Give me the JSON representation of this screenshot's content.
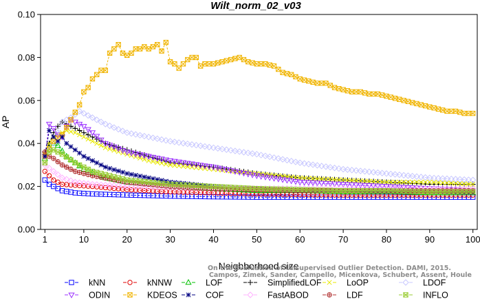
{
  "chart_data": {
    "type": "line",
    "title": "Wilt_norm_02_v03",
    "xlabel": "Neighborhood size",
    "ylabel": "AP",
    "xlim": [
      0,
      101
    ],
    "ylim": [
      0.0,
      0.1
    ],
    "xticks": [
      1,
      10,
      20,
      30,
      40,
      50,
      60,
      70,
      80,
      90,
      100
    ],
    "yticks": [
      0.0,
      0.02,
      0.04,
      0.06,
      0.08,
      0.1
    ],
    "xtick_labels": [
      "1",
      "10",
      "20",
      "30",
      "40",
      "50",
      "60",
      "70",
      "80",
      "90",
      "100"
    ],
    "ytick_labels": [
      "0.00",
      "0.02",
      "0.04",
      "0.06",
      "0.08",
      "0.10"
    ],
    "grid": false,
    "legend_position": "bottom",
    "watermark": [
      "Campos, Zimek, Sander, Campello, Micenkova, Schubert, Assent, Houle",
      "On the Evaluation of Unsupervised Outlier Detection. DAMI, 2015."
    ],
    "series": [
      {
        "name": "kNN",
        "color": "#0000ff",
        "marker": "square",
        "points": [
          [
            1,
            0.023
          ],
          [
            2,
            0.021
          ],
          [
            3,
            0.02
          ],
          [
            5,
            0.018
          ],
          [
            8,
            0.017
          ],
          [
            12,
            0.0165
          ],
          [
            20,
            0.016
          ],
          [
            30,
            0.0155
          ],
          [
            40,
            0.0152
          ],
          [
            50,
            0.015
          ],
          [
            60,
            0.015
          ],
          [
            70,
            0.015
          ],
          [
            80,
            0.015
          ],
          [
            90,
            0.015
          ],
          [
            100,
            0.015
          ]
        ]
      },
      {
        "name": "kNNW",
        "color": "#e00000",
        "marker": "circle",
        "points": [
          [
            1,
            0.027
          ],
          [
            2,
            0.025
          ],
          [
            3,
            0.023
          ],
          [
            5,
            0.021
          ],
          [
            8,
            0.0205
          ],
          [
            12,
            0.02
          ],
          [
            20,
            0.0185
          ],
          [
            30,
            0.0175
          ],
          [
            40,
            0.017
          ],
          [
            50,
            0.0165
          ],
          [
            60,
            0.0162
          ],
          [
            70,
            0.016
          ],
          [
            80,
            0.016
          ],
          [
            90,
            0.016
          ],
          [
            100,
            0.016
          ]
        ]
      },
      {
        "name": "LOF",
        "color": "#00c000",
        "marker": "triangle-up",
        "points": [
          [
            1,
            0.033
          ],
          [
            2,
            0.038
          ],
          [
            3,
            0.04
          ],
          [
            4,
            0.039
          ],
          [
            6,
            0.034
          ],
          [
            10,
            0.028
          ],
          [
            15,
            0.024
          ],
          [
            20,
            0.022
          ],
          [
            30,
            0.02
          ],
          [
            40,
            0.019
          ],
          [
            50,
            0.018
          ],
          [
            60,
            0.018
          ],
          [
            70,
            0.0175
          ],
          [
            80,
            0.0175
          ],
          [
            90,
            0.017
          ],
          [
            100,
            0.017
          ]
        ]
      },
      {
        "name": "SimplifiedLOF",
        "color": "#000000",
        "marker": "plus",
        "points": [
          [
            1,
            0.036
          ],
          [
            2,
            0.04
          ],
          [
            3,
            0.045
          ],
          [
            4,
            0.048
          ],
          [
            5,
            0.05
          ],
          [
            6,
            0.049
          ],
          [
            8,
            0.047
          ],
          [
            10,
            0.045
          ],
          [
            12,
            0.043
          ],
          [
            15,
            0.04
          ],
          [
            20,
            0.037
          ],
          [
            25,
            0.034
          ],
          [
            30,
            0.031
          ],
          [
            40,
            0.029
          ],
          [
            50,
            0.026
          ],
          [
            60,
            0.024
          ],
          [
            70,
            0.023
          ],
          [
            80,
            0.022
          ],
          [
            90,
            0.021
          ],
          [
            100,
            0.021
          ]
        ]
      },
      {
        "name": "LoOP",
        "color": "#e8e800",
        "marker": "cross",
        "points": [
          [
            1,
            0.035
          ],
          [
            2,
            0.04
          ],
          [
            3,
            0.043
          ],
          [
            4,
            0.044
          ],
          [
            6,
            0.046
          ],
          [
            8,
            0.045
          ],
          [
            10,
            0.043
          ],
          [
            12,
            0.041
          ],
          [
            15,
            0.038
          ],
          [
            20,
            0.035
          ],
          [
            25,
            0.032
          ],
          [
            30,
            0.03
          ],
          [
            40,
            0.028
          ],
          [
            50,
            0.026
          ],
          [
            60,
            0.024
          ],
          [
            70,
            0.023
          ],
          [
            80,
            0.022
          ],
          [
            90,
            0.022
          ],
          [
            100,
            0.021
          ]
        ]
      },
      {
        "name": "LDOF",
        "color": "#c8c8ff",
        "marker": "diamond",
        "points": [
          [
            1,
            0.034
          ],
          [
            3,
            0.04
          ],
          [
            5,
            0.05
          ],
          [
            7,
            0.052
          ],
          [
            9,
            0.055
          ],
          [
            10,
            0.054
          ],
          [
            12,
            0.052
          ],
          [
            15,
            0.049
          ],
          [
            20,
            0.045
          ],
          [
            25,
            0.043
          ],
          [
            30,
            0.041
          ],
          [
            40,
            0.038
          ],
          [
            50,
            0.035
          ],
          [
            60,
            0.031
          ],
          [
            70,
            0.028
          ],
          [
            80,
            0.026
          ],
          [
            90,
            0.024
          ],
          [
            100,
            0.023
          ]
        ]
      },
      {
        "name": "ODIN",
        "color": "#9b30ff",
        "marker": "triangle-down",
        "points": [
          [
            1,
            0.034
          ],
          [
            2,
            0.049
          ],
          [
            3,
            0.047
          ],
          [
            4,
            0.044
          ],
          [
            5,
            0.043
          ],
          [
            6,
            0.048
          ],
          [
            7,
            0.051
          ],
          [
            8,
            0.05
          ],
          [
            10,
            0.048
          ],
          [
            12,
            0.045
          ],
          [
            15,
            0.04
          ],
          [
            20,
            0.036
          ],
          [
            25,
            0.034
          ],
          [
            30,
            0.032
          ],
          [
            40,
            0.029
          ],
          [
            50,
            0.025
          ],
          [
            60,
            0.022
          ],
          [
            70,
            0.021
          ],
          [
            80,
            0.02
          ],
          [
            90,
            0.019
          ],
          [
            100,
            0.018
          ]
        ]
      },
      {
        "name": "KDEOS",
        "color": "#f0b400",
        "marker": "square-x",
        "points": [
          [
            1,
            0.034
          ],
          [
            3,
            0.041
          ],
          [
            5,
            0.044
          ],
          [
            7,
            0.051
          ],
          [
            9,
            0.058
          ],
          [
            10,
            0.064
          ],
          [
            11,
            0.066
          ],
          [
            12,
            0.07
          ],
          [
            13,
            0.072
          ],
          [
            14,
            0.074
          ],
          [
            15,
            0.074
          ],
          [
            16,
            0.082
          ],
          [
            17,
            0.084
          ],
          [
            18,
            0.086
          ],
          [
            19,
            0.082
          ],
          [
            20,
            0.081
          ],
          [
            21,
            0.082
          ],
          [
            22,
            0.084
          ],
          [
            23,
            0.084
          ],
          [
            24,
            0.085
          ],
          [
            25,
            0.084
          ],
          [
            26,
            0.085
          ],
          [
            27,
            0.086
          ],
          [
            28,
            0.083
          ],
          [
            29,
            0.087
          ],
          [
            30,
            0.078
          ],
          [
            31,
            0.077
          ],
          [
            32,
            0.075
          ],
          [
            33,
            0.077
          ],
          [
            34,
            0.079
          ],
          [
            35,
            0.08
          ],
          [
            36,
            0.08
          ],
          [
            37,
            0.076
          ],
          [
            38,
            0.077
          ],
          [
            39,
            0.077
          ],
          [
            40,
            0.077
          ],
          [
            42,
            0.078
          ],
          [
            44,
            0.079
          ],
          [
            46,
            0.08
          ],
          [
            48,
            0.078
          ],
          [
            50,
            0.077
          ],
          [
            52,
            0.077
          ],
          [
            54,
            0.076
          ],
          [
            56,
            0.073
          ],
          [
            58,
            0.072
          ],
          [
            60,
            0.07
          ],
          [
            62,
            0.069
          ],
          [
            64,
            0.068
          ],
          [
            66,
            0.068
          ],
          [
            68,
            0.066
          ],
          [
            70,
            0.065
          ],
          [
            72,
            0.064
          ],
          [
            74,
            0.064
          ],
          [
            76,
            0.063
          ],
          [
            78,
            0.063
          ],
          [
            80,
            0.062
          ],
          [
            82,
            0.061
          ],
          [
            84,
            0.06
          ],
          [
            86,
            0.059
          ],
          [
            88,
            0.058
          ],
          [
            90,
            0.057
          ],
          [
            92,
            0.056
          ],
          [
            94,
            0.055
          ],
          [
            96,
            0.055
          ],
          [
            98,
            0.054
          ],
          [
            100,
            0.054
          ]
        ]
      },
      {
        "name": "COF",
        "color": "#000080",
        "marker": "asterisk",
        "points": [
          [
            1,
            0.034
          ],
          [
            2,
            0.046
          ],
          [
            3,
            0.043
          ],
          [
            4,
            0.041
          ],
          [
            5,
            0.043
          ],
          [
            6,
            0.04
          ],
          [
            8,
            0.037
          ],
          [
            10,
            0.034
          ],
          [
            12,
            0.032
          ],
          [
            15,
            0.029
          ],
          [
            20,
            0.026
          ],
          [
            25,
            0.024
          ],
          [
            30,
            0.022
          ],
          [
            40,
            0.02
          ],
          [
            50,
            0.019
          ],
          [
            60,
            0.018
          ],
          [
            70,
            0.018
          ],
          [
            80,
            0.0175
          ],
          [
            90,
            0.0175
          ],
          [
            100,
            0.017
          ]
        ]
      },
      {
        "name": "FastABOD",
        "color": "#ffb0ff",
        "marker": "diamond",
        "points": [
          [
            1,
            0.03
          ],
          [
            3,
            0.027
          ],
          [
            5,
            0.024
          ],
          [
            8,
            0.022
          ],
          [
            12,
            0.021
          ],
          [
            20,
            0.02
          ],
          [
            30,
            0.0195
          ],
          [
            40,
            0.019
          ],
          [
            50,
            0.019
          ],
          [
            60,
            0.019
          ],
          [
            70,
            0.019
          ],
          [
            80,
            0.019
          ],
          [
            90,
            0.019
          ],
          [
            100,
            0.019
          ]
        ]
      },
      {
        "name": "LDF",
        "color": "#b03030",
        "marker": "circle-plus",
        "points": [
          [
            1,
            0.036
          ],
          [
            2,
            0.034
          ],
          [
            3,
            0.033
          ],
          [
            5,
            0.03
          ],
          [
            8,
            0.027
          ],
          [
            12,
            0.025
          ],
          [
            20,
            0.022
          ],
          [
            30,
            0.02
          ],
          [
            40,
            0.019
          ],
          [
            50,
            0.0185
          ],
          [
            60,
            0.018
          ],
          [
            70,
            0.018
          ],
          [
            80,
            0.018
          ],
          [
            90,
            0.018
          ],
          [
            100,
            0.018
          ]
        ]
      },
      {
        "name": "INFLO",
        "color": "#99cc33",
        "marker": "star-square",
        "points": [
          [
            1,
            0.031
          ],
          [
            2,
            0.036
          ],
          [
            3,
            0.037
          ],
          [
            5,
            0.035
          ],
          [
            8,
            0.031
          ],
          [
            12,
            0.027
          ],
          [
            20,
            0.023
          ],
          [
            30,
            0.021
          ],
          [
            40,
            0.02
          ],
          [
            50,
            0.019
          ],
          [
            60,
            0.0185
          ],
          [
            70,
            0.018
          ],
          [
            80,
            0.018
          ],
          [
            90,
            0.0175
          ],
          [
            100,
            0.0175
          ]
        ]
      }
    ]
  }
}
